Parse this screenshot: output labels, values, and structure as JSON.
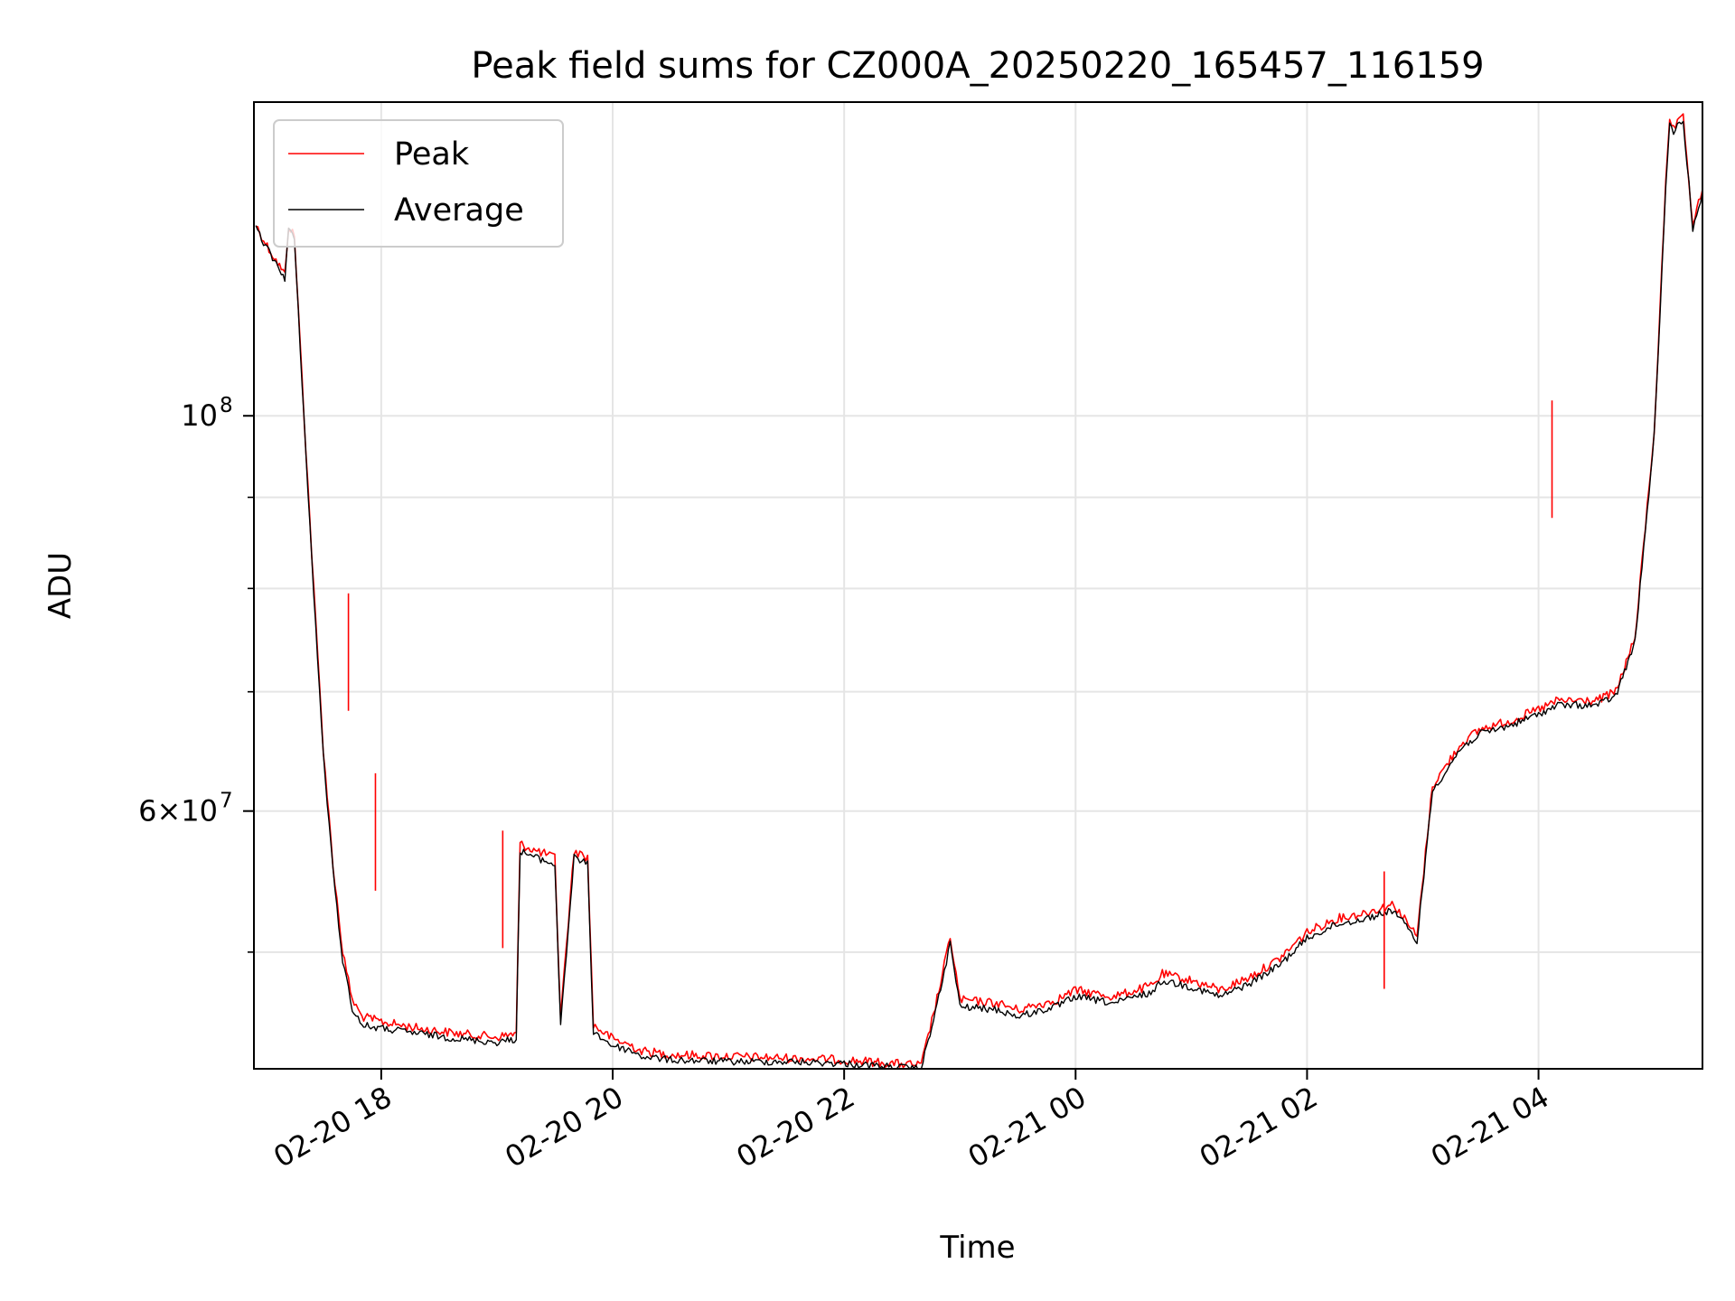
{
  "chart_data": {
    "type": "line",
    "title": "Peak field sums for CZ000A_20250220_165457_116159",
    "xlabel": "Time",
    "ylabel": "ADU",
    "y_scale": "log",
    "grid": true,
    "legend_placement": "upper-left",
    "xlim": [
      "2025-02-20 16:54",
      "2025-02-21 05:25"
    ],
    "ylim": [
      43000000,
      150000000
    ],
    "x_ticks": [
      {
        "value": "2025-02-20 18:00",
        "label": "02-20 18"
      },
      {
        "value": "2025-02-20 20:00",
        "label": "02-20 20"
      },
      {
        "value": "2025-02-20 22:00",
        "label": "02-20 22"
      },
      {
        "value": "2025-02-21 00:00",
        "label": "02-21 00"
      },
      {
        "value": "2025-02-21 02:00",
        "label": "02-21 02"
      },
      {
        "value": "2025-02-21 04:00",
        "label": "02-21 04"
      }
    ],
    "y_ticks_major": [
      {
        "value": 100000000,
        "label_base": "10",
        "label_exp": "8"
      },
      {
        "value": 60000000,
        "label_base": "6×10",
        "label_exp": "7"
      }
    ],
    "y_ticks_minor": [
      50000000,
      70000000,
      80000000,
      90000000
    ],
    "series": [
      {
        "name": "Peak",
        "color": "#ff0000",
        "x": [
          "2025-02-20 16:55",
          "2025-02-20 17:00",
          "2025-02-20 17:10",
          "2025-02-20 17:12",
          "2025-02-20 17:15",
          "2025-02-20 17:20",
          "2025-02-20 17:25",
          "2025-02-20 17:30",
          "2025-02-20 17:35",
          "2025-02-20 17:40",
          "2025-02-20 17:45",
          "2025-02-20 17:50",
          "2025-02-20 18:00",
          "2025-02-20 18:20",
          "2025-02-20 18:40",
          "2025-02-20 19:00",
          "2025-02-20 19:10",
          "2025-02-20 19:12",
          "2025-02-20 19:20",
          "2025-02-20 19:30",
          "2025-02-20 19:33",
          "2025-02-20 19:40",
          "2025-02-20 19:47",
          "2025-02-20 19:50",
          "2025-02-20 20:00",
          "2025-02-20 20:10",
          "2025-02-20 20:15",
          "2025-02-20 20:30",
          "2025-02-20 21:00",
          "2025-02-20 21:30",
          "2025-02-20 22:00",
          "2025-02-20 22:25",
          "2025-02-20 22:40",
          "2025-02-20 22:50",
          "2025-02-20 22:55",
          "2025-02-20 23:00",
          "2025-02-20 23:20",
          "2025-02-20 23:30",
          "2025-02-20 23:50",
          "2025-02-21 00:00",
          "2025-02-21 00:20",
          "2025-02-21 00:40",
          "2025-02-21 00:45",
          "2025-02-21 01:00",
          "2025-02-21 01:15",
          "2025-02-21 01:30",
          "2025-02-21 01:45",
          "2025-02-21 02:00",
          "2025-02-21 02:15",
          "2025-02-21 02:30",
          "2025-02-21 02:45",
          "2025-02-21 02:57",
          "2025-02-21 03:05",
          "2025-02-21 03:20",
          "2025-02-21 03:30",
          "2025-02-21 03:45",
          "2025-02-21 04:00",
          "2025-02-21 04:10",
          "2025-02-21 04:30",
          "2025-02-21 04:40",
          "2025-02-21 04:50",
          "2025-02-21 05:00",
          "2025-02-21 05:06",
          "2025-02-21 05:08",
          "2025-02-21 05:10",
          "2025-02-21 05:15",
          "2025-02-21 05:20",
          "2025-02-21 05:25"
        ],
        "y": [
          128000000,
          125000000,
          120000000,
          128000000,
          126000000,
          100000000,
          80000000,
          65000000,
          56000000,
          50000000,
          47000000,
          46000000,
          45700000,
          45300000,
          45000000,
          44800000,
          45000000,
          57500000,
          57000000,
          56500000,
          46000000,
          57000000,
          56500000,
          45500000,
          44700000,
          44300000,
          44000000,
          43800000,
          43700000,
          43600000,
          43500000,
          43300000,
          43200000,
          48000000,
          51000000,
          47000000,
          46800000,
          46400000,
          47000000,
          47600000,
          47200000,
          47900000,
          48600000,
          48200000,
          47600000,
          48400000,
          49500000,
          51300000,
          52200000,
          52600000,
          53200000,
          51000000,
          62000000,
          65500000,
          66700000,
          67400000,
          68400000,
          69200000,
          69200000,
          70000000,
          75000000,
          98000000,
          135000000,
          146000000,
          145000000,
          147000000,
          128000000,
          134000000
        ]
      },
      {
        "name": "Average",
        "color": "#000000",
        "x": [
          "2025-02-20 16:55",
          "2025-02-20 17:00",
          "2025-02-20 17:10",
          "2025-02-20 17:12",
          "2025-02-20 17:15",
          "2025-02-20 17:20",
          "2025-02-20 17:25",
          "2025-02-20 17:30",
          "2025-02-20 17:35",
          "2025-02-20 17:40",
          "2025-02-20 17:45",
          "2025-02-20 17:50",
          "2025-02-20 18:00",
          "2025-02-20 18:20",
          "2025-02-20 18:40",
          "2025-02-20 19:00",
          "2025-02-20 19:10",
          "2025-02-20 19:12",
          "2025-02-20 19:20",
          "2025-02-20 19:30",
          "2025-02-20 19:33",
          "2025-02-20 19:40",
          "2025-02-20 19:47",
          "2025-02-20 19:50",
          "2025-02-20 20:00",
          "2025-02-20 20:10",
          "2025-02-20 20:15",
          "2025-02-20 20:30",
          "2025-02-20 21:00",
          "2025-02-20 21:30",
          "2025-02-20 22:00",
          "2025-02-20 22:25",
          "2025-02-20 22:40",
          "2025-02-20 22:50",
          "2025-02-20 22:55",
          "2025-02-20 23:00",
          "2025-02-20 23:20",
          "2025-02-20 23:30",
          "2025-02-20 23:50",
          "2025-02-21 00:00",
          "2025-02-21 00:20",
          "2025-02-21 00:40",
          "2025-02-21 00:45",
          "2025-02-21 01:00",
          "2025-02-21 01:15",
          "2025-02-21 01:30",
          "2025-02-21 01:45",
          "2025-02-21 02:00",
          "2025-02-21 02:15",
          "2025-02-21 02:30",
          "2025-02-21 02:45",
          "2025-02-21 02:57",
          "2025-02-21 03:05",
          "2025-02-21 03:20",
          "2025-02-21 03:30",
          "2025-02-21 03:45",
          "2025-02-21 04:00",
          "2025-02-21 04:10",
          "2025-02-21 04:30",
          "2025-02-21 04:40",
          "2025-02-21 04:50",
          "2025-02-21 05:00",
          "2025-02-21 05:06",
          "2025-02-21 05:08",
          "2025-02-21 05:10",
          "2025-02-21 05:15",
          "2025-02-21 05:20",
          "2025-02-21 05:25"
        ],
        "y": [
          127500000,
          124500000,
          119500000,
          127500000,
          125500000,
          99500000,
          79500000,
          64500000,
          55500000,
          49500000,
          46500000,
          45500000,
          45300000,
          45000000,
          44700000,
          44500000,
          44700000,
          57000000,
          56500000,
          56000000,
          45600000,
          56500000,
          56000000,
          45100000,
          44300000,
          44000000,
          43700000,
          43500000,
          43400000,
          43400000,
          43300000,
          43100000,
          43000000,
          47600000,
          50600000,
          46600000,
          46400000,
          46000000,
          46600000,
          47200000,
          46800000,
          47500000,
          48200000,
          47800000,
          47200000,
          48000000,
          49100000,
          50900000,
          51800000,
          52200000,
          52800000,
          50700000,
          61600000,
          65100000,
          66300000,
          67000000,
          68000000,
          68800000,
          68800000,
          69600000,
          74600000,
          97500000,
          134000000,
          145500000,
          144500000,
          146500000,
          127500000,
          133500000
        ]
      }
    ],
    "spikes": [
      {
        "series": "Peak",
        "x": "2025-02-20 17:43",
        "y": 79500000
      },
      {
        "series": "Peak",
        "x": "2025-02-20 19:03",
        "y": 58500000
      },
      {
        "series": "Peak",
        "x": "2025-02-20 17:57",
        "y": 63000000
      },
      {
        "series": "Peak",
        "x": "2025-02-21 02:40",
        "y": 55500000
      },
      {
        "series": "Peak",
        "x": "2025-02-21 04:07",
        "y": 102000000
      }
    ]
  }
}
